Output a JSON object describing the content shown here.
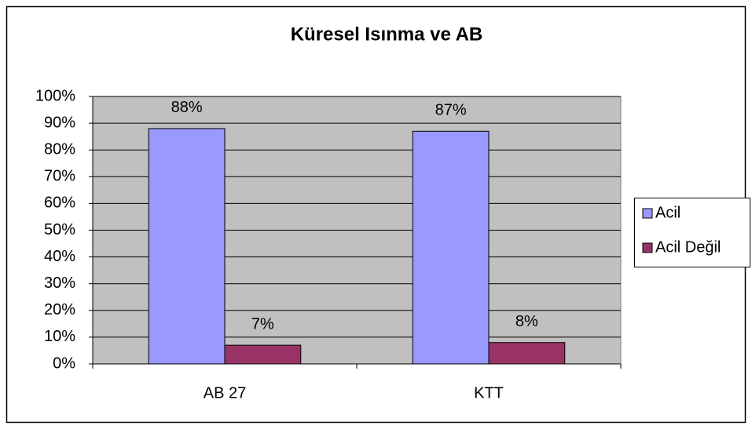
{
  "chart_data": {
    "type": "bar",
    "title": "Küresel Isınma ve AB",
    "categories": [
      "AB 27",
      "KTT"
    ],
    "series": [
      {
        "name": "Acil",
        "color": "#9999ff",
        "values": [
          88,
          87
        ],
        "value_labels": [
          "88%",
          "87%"
        ]
      },
      {
        "name": "Acil Değil",
        "color": "#993366",
        "values": [
          7,
          8
        ],
        "value_labels": [
          "7%",
          "8%"
        ]
      }
    ],
    "ylim": [
      0,
      100
    ],
    "yticks": [
      {
        "value": 0,
        "label": "0%"
      },
      {
        "value": 10,
        "label": "10%"
      },
      {
        "value": 20,
        "label": "20%"
      },
      {
        "value": 30,
        "label": "30%"
      },
      {
        "value": 40,
        "label": "40%"
      },
      {
        "value": 50,
        "label": "50%"
      },
      {
        "value": 60,
        "label": "60%"
      },
      {
        "value": 70,
        "label": "70%"
      },
      {
        "value": 80,
        "label": "80%"
      },
      {
        "value": 90,
        "label": "90%"
      },
      {
        "value": 100,
        "label": "100%"
      }
    ],
    "grid": true,
    "legend": "right"
  }
}
